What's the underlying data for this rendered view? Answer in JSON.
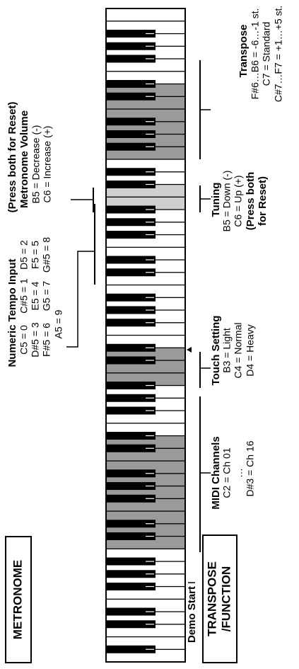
{
  "metronome_button": "METRONOME",
  "transpose_button": [
    "TRANSPOSE",
    "/FUNCTION"
  ],
  "demo_start": "Demo Start",
  "tempo_input": {
    "title": "Numeric Tempo Input",
    "rows": [
      [
        "C5 = 0",
        "C#5 = 1",
        "D5 = 2"
      ],
      [
        "D#5 = 3",
        "E5 = 4",
        "F5 = 5"
      ],
      [
        "F#5 = 6",
        "G5 = 7",
        "G#5 = 8"
      ],
      [
        "A5 = 9"
      ]
    ]
  },
  "metronome_volume": {
    "lines": [
      "(Press both for Reset)",
      "Metronome Volume",
      "B5 = Decrease (-)",
      "C6 = Increase (+)"
    ]
  },
  "midi_channels": {
    "lines": [
      "MIDI Channels",
      "C2 = Ch 01",
      "…",
      "D#3 = Ch 16"
    ]
  },
  "touch_setting": {
    "lines": [
      "Touch Setting",
      "B3 = Light",
      "C4 = Normal",
      "D4 = Heavy"
    ]
  },
  "tuning": {
    "lines": [
      "Tuning",
      "B5 = Down (-)",
      "C6 = Up (+)",
      "(Press both",
      "for Reset)"
    ]
  },
  "transpose": {
    "lines": [
      "Transpose",
      "F#6…B6 = -6…-1 st.",
      "C7 = Standard",
      "C#7…F7 = +1…+5 st."
    ]
  }
}
